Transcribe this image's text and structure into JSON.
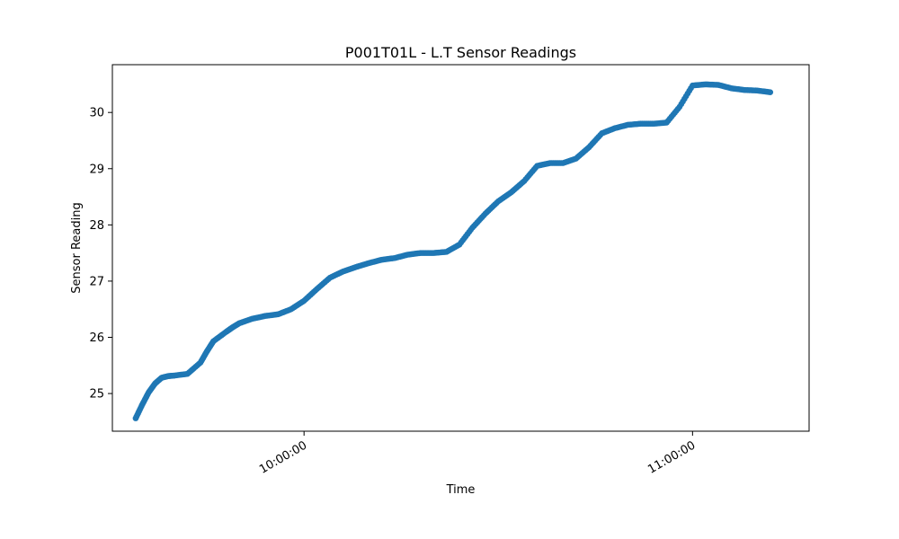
{
  "chart_data": {
    "type": "scatter",
    "title": "P001T01L - L.T Sensor Readings",
    "xlabel": "Time",
    "ylabel": "Sensor Reading",
    "color": "#1f77b4",
    "xlim": [
      "09:30:24",
      "11:18:00"
    ],
    "ylim": [
      24.33,
      30.85
    ],
    "x_ticks": [
      "10:00:00",
      "11:00:00"
    ],
    "y_ticks": [
      25,
      26,
      27,
      28,
      29,
      30
    ],
    "grid": false,
    "legend": "none",
    "x": [
      "09:34:00",
      "09:35:00",
      "09:36:00",
      "09:37:00",
      "09:38:00",
      "09:39:00",
      "09:40:00",
      "09:42:00",
      "09:44:00",
      "09:45:00",
      "09:46:00",
      "09:48:00",
      "09:49:00",
      "09:50:00",
      "09:52:00",
      "09:54:00",
      "09:56:00",
      "09:58:00",
      "10:00:00",
      "10:02:00",
      "10:04:00",
      "10:06:00",
      "10:08:00",
      "10:10:00",
      "10:12:00",
      "10:14:00",
      "10:16:00",
      "10:18:00",
      "10:20:00",
      "10:22:00",
      "10:24:00",
      "10:26:00",
      "10:28:00",
      "10:30:00",
      "10:32:00",
      "10:34:00",
      "10:36:00",
      "10:38:00",
      "10:40:00",
      "10:42:00",
      "10:44:00",
      "10:46:00",
      "10:48:00",
      "10:50:00",
      "10:52:00",
      "10:54:00",
      "10:56:00",
      "10:58:00",
      "11:00:00",
      "11:02:00",
      "11:04:00",
      "11:06:00",
      "11:08:00",
      "11:10:00",
      "11:12:00"
    ],
    "values": [
      24.56,
      24.8,
      25.02,
      25.18,
      25.28,
      25.31,
      25.32,
      25.35,
      25.55,
      25.75,
      25.93,
      26.1,
      26.18,
      26.25,
      26.33,
      26.38,
      26.41,
      26.5,
      26.65,
      26.86,
      27.06,
      27.17,
      27.25,
      27.32,
      27.38,
      27.41,
      27.47,
      27.5,
      27.5,
      27.52,
      27.65,
      27.95,
      28.2,
      28.42,
      28.58,
      28.78,
      29.05,
      29.1,
      29.1,
      29.18,
      29.38,
      29.63,
      29.72,
      29.78,
      29.8,
      29.8,
      29.82,
      30.1,
      30.48,
      30.5,
      30.49,
      30.43,
      30.4,
      30.39,
      30.36
    ]
  }
}
